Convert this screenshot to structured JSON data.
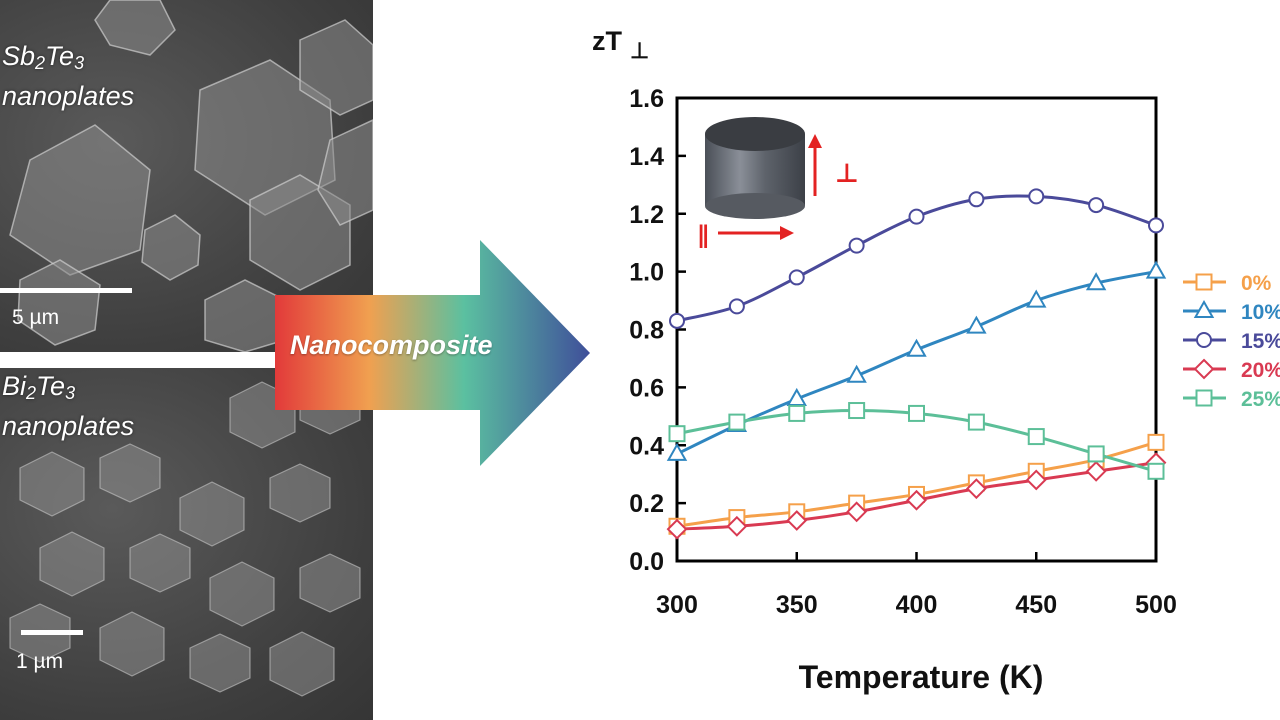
{
  "sem_top": {
    "material": "Sb",
    "sub1": "2",
    "mid": "Te",
    "sub2": "3",
    "line2": "nanoplates",
    "scale": "5 µm"
  },
  "sem_bottom": {
    "material": "Bi",
    "sub1": "2",
    "mid": "Te",
    "sub2": "3",
    "line2": "nanoplates",
    "scale": "1 µm"
  },
  "arrow": {
    "label": "Nanocomposite"
  },
  "inset": {
    "perp_symbol": "⊥",
    "parallel_symbol": "∥"
  },
  "colors": {
    "perp_arrow": "#e32222"
  },
  "chart_data": {
    "type": "line",
    "title": "",
    "ylabel_main": "zT",
    "ylabel_sub": "⊥",
    "xlabel": "Temperature (K)",
    "xlim": [
      300,
      500
    ],
    "ylim": [
      0,
      1.6
    ],
    "xticks": [
      "300",
      "350",
      "400",
      "450",
      "500"
    ],
    "yticks": [
      "0.0",
      "0.2",
      "0.4",
      "0.6",
      "0.8",
      "1.0",
      "1.2",
      "1.4",
      "1.6"
    ],
    "grid": false,
    "legend_position": "right",
    "x": [
      300,
      325,
      350,
      375,
      400,
      425,
      450,
      475,
      500
    ],
    "series": [
      {
        "name": "0%",
        "color": "#f5a04a",
        "marker": "square",
        "values": [
          0.12,
          0.15,
          0.17,
          0.2,
          0.23,
          0.27,
          0.31,
          0.35,
          0.41
        ]
      },
      {
        "name": "10%",
        "color": "#2f86c0",
        "marker": "triangle",
        "values": [
          0.37,
          0.47,
          0.56,
          0.64,
          0.73,
          0.81,
          0.9,
          0.96,
          1.0
        ]
      },
      {
        "name": "15%",
        "color": "#4a4a9a",
        "marker": "circle",
        "values": [
          0.83,
          0.88,
          0.98,
          1.09,
          1.19,
          1.25,
          1.26,
          1.23,
          1.16
        ]
      },
      {
        "name": "20%",
        "color": "#d93a52",
        "marker": "diamond",
        "values": [
          0.11,
          0.12,
          0.14,
          0.17,
          0.21,
          0.25,
          0.28,
          0.31,
          0.34
        ]
      },
      {
        "name": "25%",
        "color": "#5cbf98",
        "marker": "square",
        "values": [
          0.44,
          0.48,
          0.51,
          0.52,
          0.51,
          0.48,
          0.43,
          0.37,
          0.31
        ]
      }
    ]
  }
}
